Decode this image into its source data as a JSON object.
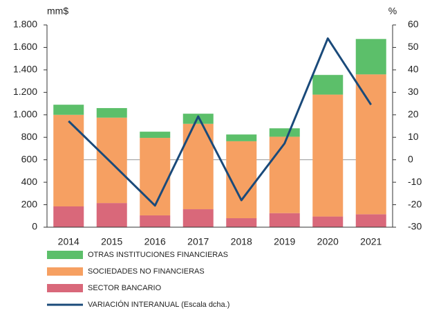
{
  "chart_data": {
    "type": "bar",
    "stacked": true,
    "ylabel": "mm$",
    "y2label": "%",
    "categories": [
      "2014",
      "2015",
      "2016",
      "2017",
      "2018",
      "2019",
      "2020",
      "2021"
    ],
    "series": [
      {
        "name": "SECTOR BANCARIO",
        "color": "#d9687a",
        "values": [
          185,
          215,
          105,
          160,
          80,
          125,
          95,
          115
        ]
      },
      {
        "name": "SOCIEDADES NO FINANCIERAS",
        "color": "#f6a062",
        "values": [
          815,
          760,
          690,
          760,
          685,
          680,
          1085,
          1245
        ]
      },
      {
        "name": "OTRAS INSTITUCIONES FINANCIERAS",
        "color": "#5cbf6a",
        "values": [
          90,
          85,
          55,
          90,
          60,
          75,
          175,
          315
        ]
      },
      {
        "name": "VARIACIÓN INTERANUAL (Escala dcha.)",
        "color": "#1a4a7a",
        "type": "line",
        "axis": "y2",
        "values": [
          17.2,
          -1.5,
          -20.4,
          19.3,
          -18,
          7.3,
          54,
          24.5
        ]
      }
    ],
    "ylim": [
      0,
      1800
    ],
    "yticks": [
      0,
      200,
      400,
      600,
      800,
      {
        "value": 1000,
        "label": "1.000"
      },
      {
        "value": 1200,
        "label": "1.200"
      },
      {
        "value": 1400,
        "label": "1.400"
      },
      {
        "value": 1600,
        "label": "1.600"
      },
      {
        "value": 1800,
        "label": "1.800"
      }
    ],
    "y2lim": [
      -30,
      60
    ],
    "y2ticks": [
      -30,
      -20,
      -10,
      0,
      10,
      20,
      30,
      40,
      50,
      60
    ]
  }
}
